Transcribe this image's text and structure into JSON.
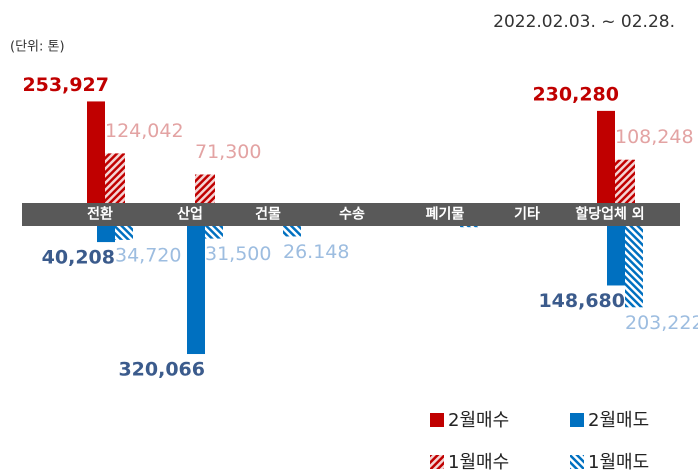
{
  "chart_data": {
    "type": "bar",
    "subtitle": "2022.02.03. ~ 02.28.",
    "unit_note": "(단위: 톤)",
    "categories": [
      "전환",
      "산업",
      "건물",
      "수송",
      "폐기물",
      "기타",
      "할당업체 외"
    ],
    "series": [
      {
        "name": "2월매수",
        "color": "#c00000",
        "label_color": "#c00000",
        "hatched": false,
        "direction": "up",
        "values": [
          253927,
          null,
          null,
          null,
          null,
          null,
          230280
        ],
        "value_labels": [
          "253,927",
          null,
          null,
          null,
          null,
          null,
          "230,280"
        ]
      },
      {
        "name": "1월매수",
        "color": "#c00000",
        "label_color": "#e3a3a3",
        "hatched": true,
        "direction": "up",
        "values": [
          124042,
          71300,
          null,
          null,
          null,
          null,
          108248
        ],
        "value_labels": [
          "124,042",
          "71,300",
          null,
          null,
          null,
          null,
          "108,248"
        ]
      },
      {
        "name": "2월매도",
        "color": "#0070c0",
        "label_color": "#3b5b8c",
        "hatched": false,
        "direction": "down",
        "values": [
          40208,
          320066,
          null,
          null,
          null,
          null,
          148680
        ],
        "value_labels": [
          "40,208",
          "320,066",
          null,
          null,
          null,
          null,
          "148,680"
        ]
      },
      {
        "name": "1월매도",
        "color": "#0070c0",
        "label_color": "#9dbde0",
        "hatched": true,
        "direction": "down",
        "values": [
          34720,
          31500,
          26148,
          null,
          3000,
          null,
          203222
        ],
        "value_labels": [
          "34,720",
          "31,500",
          "26.148",
          null,
          null,
          null,
          "203,222"
        ]
      }
    ]
  }
}
